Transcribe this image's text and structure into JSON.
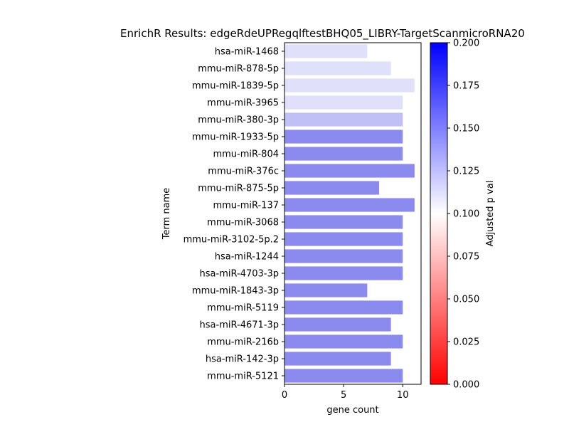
{
  "chart_data": {
    "type": "bar",
    "orientation": "horizontal",
    "title": "EnrichR Results: edgeRdeUPRegqlftestBHQ05_LIBRY-TargetScanmicroRNA20",
    "xlabel": "gene count",
    "ylabel": "Term name",
    "xlim": [
      0,
      11.55
    ],
    "xticks": [
      "0",
      "5",
      "10"
    ],
    "categories": [
      "hsa-miR-1468",
      "mmu-miR-878-5p",
      "mmu-miR-1839-5p",
      "mmu-miR-3965",
      "mmu-miR-380-3p",
      "mmu-miR-1933-5p",
      "mmu-miR-804",
      "mmu-miR-376c",
      "mmu-miR-875-5p",
      "mmu-miR-137",
      "mmu-miR-3068",
      "mmu-miR-3102-5p.2",
      "hsa-miR-1244",
      "hsa-miR-4703-3p",
      "mmu-miR-1843-3p",
      "mmu-miR-5119",
      "hsa-miR-4671-3p",
      "mmu-miR-216b",
      "hsa-miR-142-3p",
      "mmu-miR-5121"
    ],
    "values": [
      7,
      9,
      11,
      10,
      10,
      10,
      10,
      11,
      8,
      11,
      10,
      10,
      10,
      10,
      7,
      10,
      9,
      10,
      9,
      10
    ],
    "bar_colors": [
      "#e0e0fa",
      "#e0e0fa",
      "#e0e0fa",
      "#e0e0fa",
      "#c0c0f6",
      "#8b8bef",
      "#8b8bef",
      "#8b8bef",
      "#8b8bef",
      "#8b8bef",
      "#8b8bef",
      "#8b8bef",
      "#8b8bef",
      "#8b8bef",
      "#8b8bef",
      "#8b8bef",
      "#8b8bef",
      "#8b8bef",
      "#8b8bef",
      "#8b8bef"
    ],
    "colorbar": {
      "label": "Adjusted p val",
      "range": [
        0,
        0.2
      ],
      "ticks": [
        "0.000",
        "0.025",
        "0.050",
        "0.075",
        "0.100",
        "0.125",
        "0.150",
        "0.175",
        "0.200"
      ],
      "colors": [
        "#ff0000",
        "#ffffff",
        "#0000ff"
      ]
    }
  }
}
